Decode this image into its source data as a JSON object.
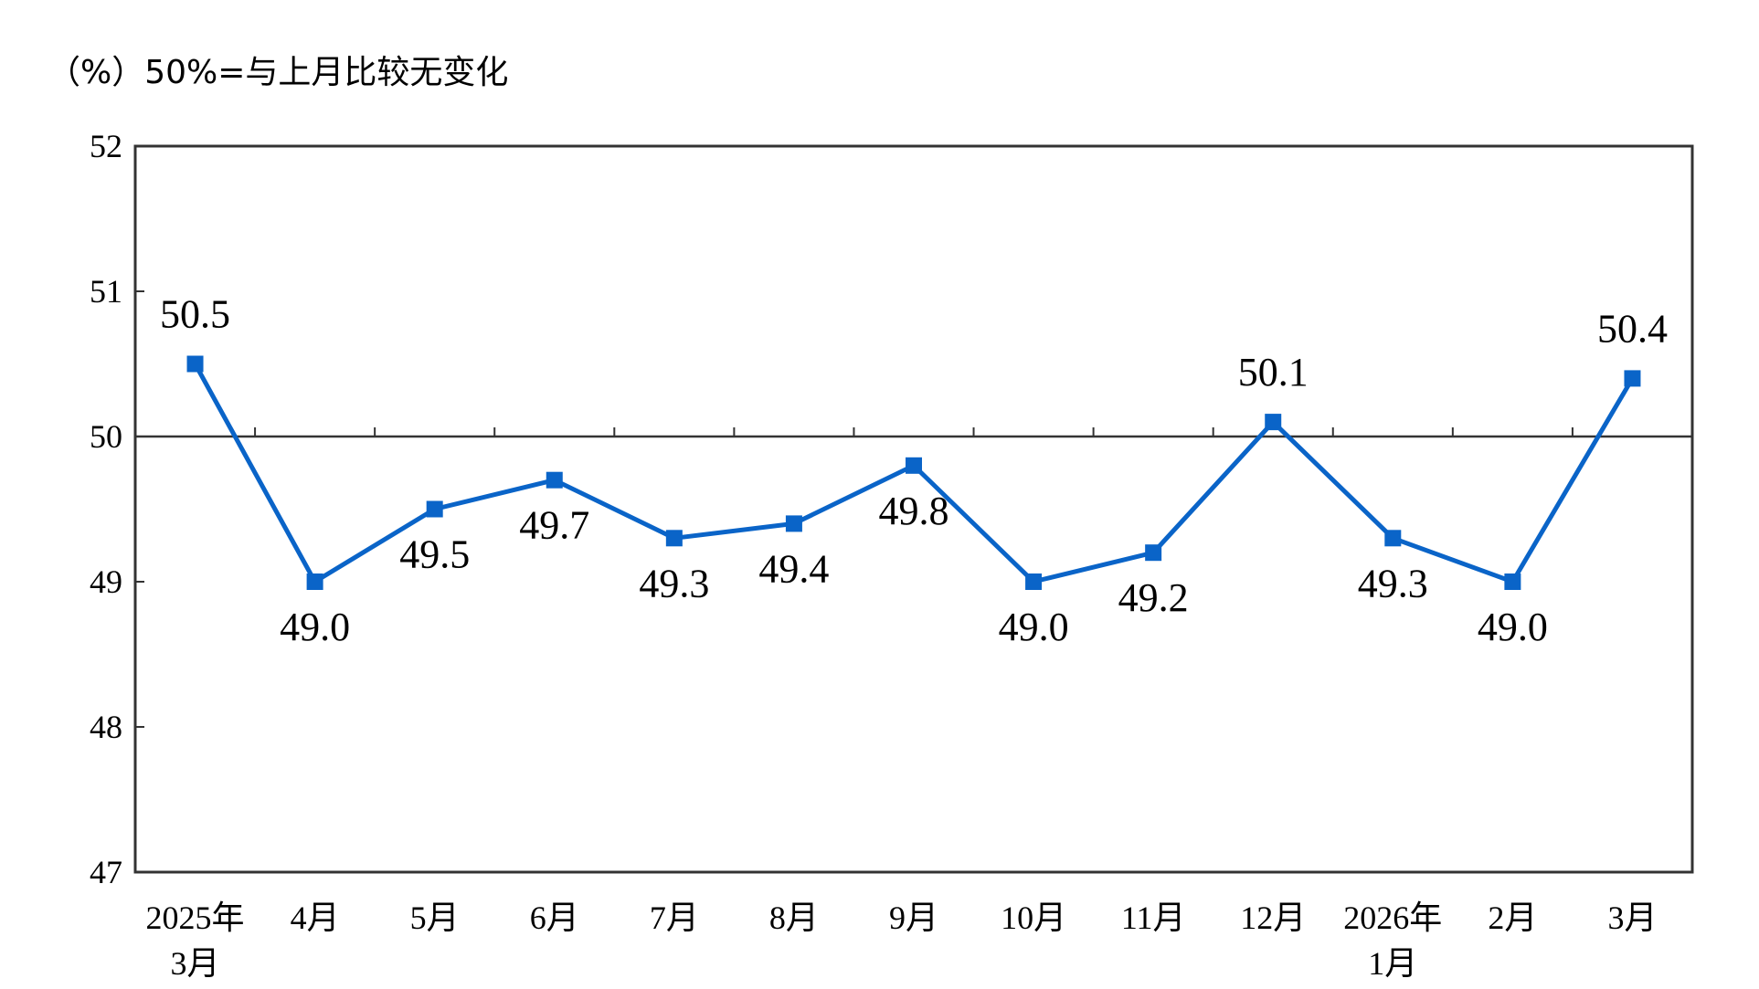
{
  "header": {
    "unit_note": "（%）50%=与上月比较无变化"
  },
  "chart_data": {
    "type": "line",
    "categories": [
      [
        "2025年",
        "3月"
      ],
      [
        "4月"
      ],
      [
        "5月"
      ],
      [
        "6月"
      ],
      [
        "7月"
      ],
      [
        "8月"
      ],
      [
        "9月"
      ],
      [
        "10月"
      ],
      [
        "11月"
      ],
      [
        "12月"
      ],
      [
        "2026年",
        "1月"
      ],
      [
        "2月"
      ],
      [
        "3月"
      ]
    ],
    "series": [
      {
        "values": [
          50.5,
          49.0,
          49.5,
          49.7,
          49.3,
          49.4,
          49.8,
          49.0,
          49.2,
          50.1,
          49.3,
          49.0,
          50.4
        ],
        "labels": [
          "50.5",
          "49.0",
          "49.5",
          "49.7",
          "49.3",
          "49.4",
          "49.8",
          "49.0",
          "49.2",
          "50.1",
          "49.3",
          "49.0",
          "50.4"
        ],
        "color": "#0a64c8"
      }
    ],
    "label_position": [
      "above",
      "below",
      "below",
      "below",
      "below",
      "below",
      "below",
      "below",
      "below",
      "above",
      "below",
      "below",
      "above"
    ],
    "ylim": [
      47,
      52
    ],
    "yticks": [
      "47",
      "48",
      "49",
      "50",
      "51",
      "52"
    ],
    "reference_line": 50,
    "grid": false,
    "axis_color": "#333333"
  }
}
